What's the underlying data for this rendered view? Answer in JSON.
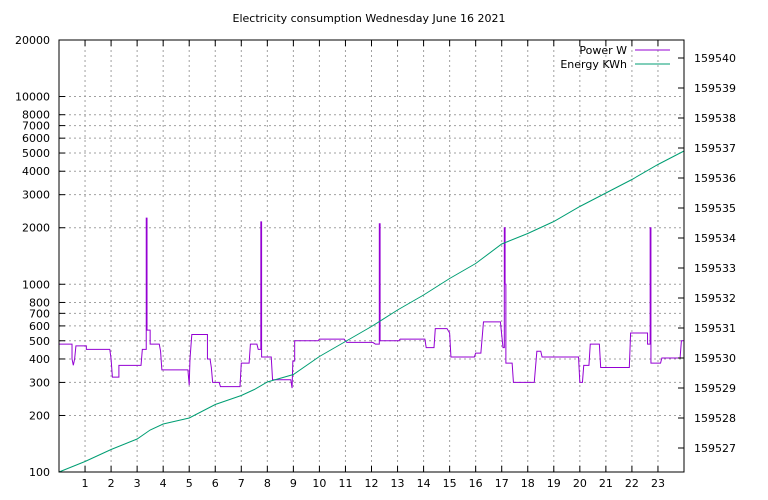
{
  "chart_data": {
    "type": "line",
    "title": "Electricity consumption Wednesday June 16 2021",
    "xlabel": "",
    "ylabel": "",
    "y2label": "",
    "xlim": [
      0,
      24
    ],
    "ylim": [
      100,
      20000
    ],
    "y_scale": "log",
    "y2lim": [
      159526.2,
      159540.6
    ],
    "y2_scale": "linear",
    "grid": true,
    "legend_position": "top-right",
    "x_ticks": [
      "1",
      "2",
      "3",
      "4",
      "5",
      "6",
      "7",
      "8",
      "9",
      "10",
      "11",
      "12",
      "13",
      "14",
      "15",
      "16",
      "17",
      "18",
      "19",
      "20",
      "21",
      "22",
      "23"
    ],
    "y_ticks": [
      "100",
      "200",
      "300",
      "400",
      "500",
      "600",
      "700",
      "800",
      "1000",
      "2000",
      "3000",
      "4000",
      "5000",
      "6000",
      "7000",
      "8000",
      "10000",
      "20000"
    ],
    "y2_ticks": [
      "159527",
      "159528",
      "159529",
      "159530",
      "159531",
      "159532",
      "159533",
      "159534",
      "159535",
      "159536",
      "159537",
      "159538",
      "159539",
      "159540"
    ],
    "series": [
      {
        "name": "Power W",
        "axis": "y",
        "color": "#9400d3",
        "step": true,
        "points": [
          [
            0,
            480
          ],
          [
            0.5,
            480
          ],
          [
            0.5,
            400
          ],
          [
            0.55,
            370
          ],
          [
            0.6,
            400
          ],
          [
            0.65,
            470
          ],
          [
            1.05,
            470
          ],
          [
            1.05,
            450
          ],
          [
            1.95,
            450
          ],
          [
            2.0,
            400
          ],
          [
            2.05,
            320
          ],
          [
            2.3,
            320
          ],
          [
            2.3,
            370
          ],
          [
            3.15,
            370
          ],
          [
            3.2,
            450
          ],
          [
            3.35,
            450
          ],
          [
            3.35,
            2250
          ],
          [
            3.38,
            2250
          ],
          [
            3.38,
            570
          ],
          [
            3.5,
            570
          ],
          [
            3.5,
            480
          ],
          [
            3.85,
            480
          ],
          [
            3.9,
            440
          ],
          [
            3.95,
            350
          ],
          [
            4.95,
            350
          ],
          [
            5.0,
            290
          ],
          [
            5.03,
            400
          ],
          [
            5.1,
            540
          ],
          [
            5.7,
            540
          ],
          [
            5.7,
            400
          ],
          [
            5.8,
            400
          ],
          [
            5.85,
            360
          ],
          [
            5.9,
            300
          ],
          [
            6.15,
            300
          ],
          [
            6.2,
            285
          ],
          [
            6.95,
            285
          ],
          [
            7.0,
            380
          ],
          [
            7.3,
            380
          ],
          [
            7.35,
            480
          ],
          [
            7.6,
            480
          ],
          [
            7.65,
            450
          ],
          [
            7.75,
            450
          ],
          [
            7.75,
            2150
          ],
          [
            7.78,
            2150
          ],
          [
            7.78,
            410
          ],
          [
            8.15,
            410
          ],
          [
            8.2,
            310
          ],
          [
            8.9,
            310
          ],
          [
            8.95,
            280
          ],
          [
            8.98,
            390
          ],
          [
            9.05,
            390
          ],
          [
            9.05,
            500
          ],
          [
            9.95,
            500
          ],
          [
            10.0,
            510
          ],
          [
            10.95,
            510
          ],
          [
            11.05,
            490
          ],
          [
            12.05,
            490
          ],
          [
            12.15,
            480
          ],
          [
            12.3,
            480
          ],
          [
            12.3,
            2100
          ],
          [
            12.33,
            2100
          ],
          [
            12.33,
            500
          ],
          [
            12.45,
            500
          ],
          [
            13.05,
            500
          ],
          [
            13.1,
            510
          ],
          [
            14.05,
            510
          ],
          [
            14.1,
            460
          ],
          [
            14.4,
            460
          ],
          [
            14.45,
            580
          ],
          [
            14.9,
            580
          ],
          [
            15.0,
            550
          ],
          [
            15.05,
            410
          ],
          [
            15.95,
            410
          ],
          [
            16.0,
            430
          ],
          [
            16.2,
            430
          ],
          [
            16.3,
            630
          ],
          [
            16.95,
            630
          ],
          [
            17.05,
            460
          ],
          [
            17.1,
            460
          ],
          [
            17.1,
            2000
          ],
          [
            17.13,
            2000
          ],
          [
            17.13,
            1000
          ],
          [
            17.16,
            1000
          ],
          [
            17.16,
            380
          ],
          [
            17.4,
            380
          ],
          [
            17.45,
            300
          ],
          [
            18.25,
            300
          ],
          [
            18.35,
            440
          ],
          [
            18.5,
            440
          ],
          [
            18.55,
            410
          ],
          [
            19.95,
            410
          ],
          [
            20.0,
            300
          ],
          [
            20.1,
            300
          ],
          [
            20.15,
            370
          ],
          [
            20.35,
            370
          ],
          [
            20.4,
            480
          ],
          [
            20.75,
            480
          ],
          [
            20.8,
            360
          ],
          [
            21.9,
            360
          ],
          [
            21.95,
            550
          ],
          [
            22.6,
            550
          ],
          [
            22.6,
            480
          ],
          [
            22.7,
            480
          ],
          [
            22.7,
            2000
          ],
          [
            22.73,
            2000
          ],
          [
            22.73,
            380
          ],
          [
            23.1,
            380
          ],
          [
            23.15,
            405
          ],
          [
            23.85,
            405
          ],
          [
            23.9,
            500
          ],
          [
            24,
            500
          ]
        ]
      },
      {
        "name": "Energy KWh",
        "axis": "y2",
        "color": "#009e73",
        "step": false,
        "points": [
          [
            0,
            159526.2
          ],
          [
            1,
            159526.55
          ],
          [
            2,
            159526.95
          ],
          [
            3,
            159527.3
          ],
          [
            3.5,
            159527.6
          ],
          [
            4,
            159527.8
          ],
          [
            5,
            159528.0
          ],
          [
            6,
            159528.45
          ],
          [
            7,
            159528.75
          ],
          [
            7.5,
            159528.95
          ],
          [
            8,
            159529.2
          ],
          [
            9,
            159529.45
          ],
          [
            10,
            159530.05
          ],
          [
            11,
            159530.55
          ],
          [
            12,
            159531.05
          ],
          [
            13,
            159531.6
          ],
          [
            14,
            159532.1
          ],
          [
            15,
            159532.65
          ],
          [
            16,
            159533.15
          ],
          [
            17,
            159533.8
          ],
          [
            18,
            159534.15
          ],
          [
            19,
            159534.55
          ],
          [
            20,
            159535.05
          ],
          [
            21,
            159535.5
          ],
          [
            22,
            159535.95
          ],
          [
            23,
            159536.45
          ],
          [
            24,
            159536.9
          ]
        ]
      }
    ]
  }
}
